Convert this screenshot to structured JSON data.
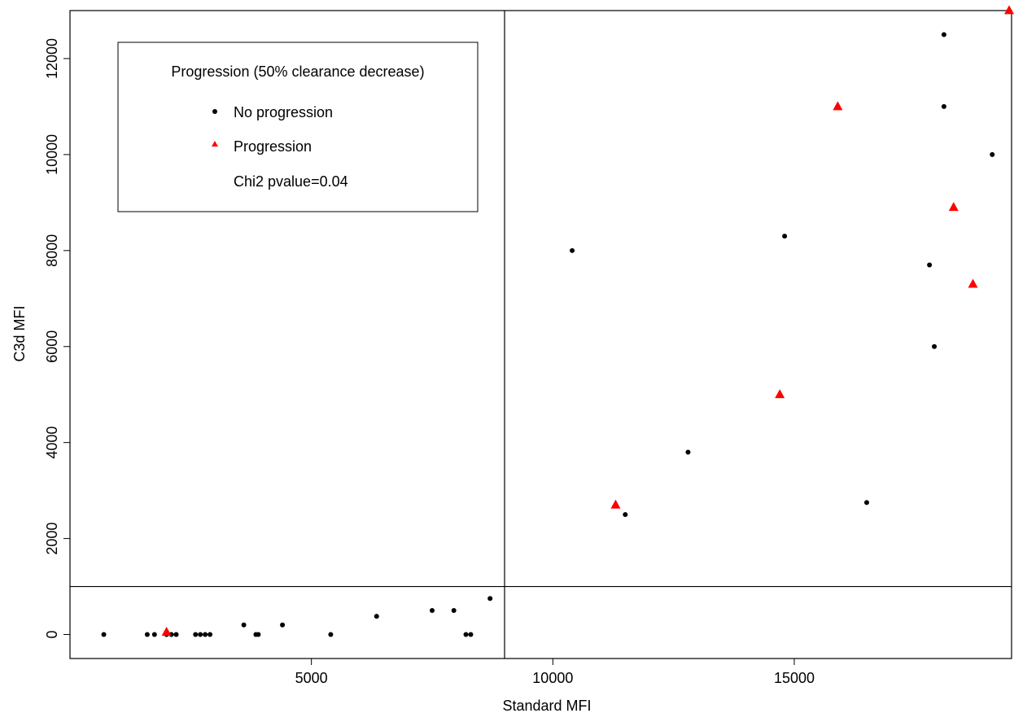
{
  "chart_data": {
    "type": "scatter",
    "title": "",
    "xlabel": "Standard MFI",
    "ylabel": "C3d MFI",
    "xlim": [
      0,
      19500
    ],
    "ylim": [
      -500,
      13000
    ],
    "x_ticks": [
      "5000",
      "10000",
      "15000"
    ],
    "x_tick_values": [
      5000,
      10000,
      15000
    ],
    "y_ticks": [
      "0",
      "2000",
      "4000",
      "6000",
      "8000",
      "10000",
      "12000"
    ],
    "y_tick_values": [
      0,
      2000,
      4000,
      6000,
      8000,
      10000,
      12000
    ],
    "reference_lines": {
      "vertical_x": 9000,
      "horizontal_y": 1000
    },
    "grid": false,
    "legend": {
      "placement": "top-left",
      "title": "Progression (50% clearance decrease)",
      "entries": [
        {
          "label": "No progression",
          "marker": "circle",
          "color": "#000000"
        },
        {
          "label": "Progression",
          "marker": "triangle",
          "color": "#ff0000"
        }
      ],
      "note": "Chi2 pvalue=0.04"
    },
    "series": [
      {
        "name": "No progression",
        "marker": "circle",
        "color": "#000000",
        "points": [
          [
            700,
            0
          ],
          [
            1600,
            0
          ],
          [
            1750,
            0
          ],
          [
            2000,
            0
          ],
          [
            2100,
            0
          ],
          [
            2200,
            0
          ],
          [
            2600,
            0
          ],
          [
            2700,
            0
          ],
          [
            2800,
            0
          ],
          [
            2900,
            0
          ],
          [
            3600,
            200
          ],
          [
            3850,
            0
          ],
          [
            3900,
            0
          ],
          [
            4400,
            200
          ],
          [
            5400,
            0
          ],
          [
            6350,
            380
          ],
          [
            7500,
            500
          ],
          [
            7950,
            500
          ],
          [
            8200,
            0
          ],
          [
            8300,
            0
          ],
          [
            8700,
            750
          ],
          [
            10400,
            8000
          ],
          [
            11500,
            2500
          ],
          [
            12800,
            3800
          ],
          [
            14800,
            8300
          ],
          [
            16500,
            2750
          ],
          [
            17800,
            7700
          ],
          [
            17900,
            6000
          ],
          [
            18100,
            11000
          ],
          [
            18100,
            12500
          ],
          [
            19100,
            10000
          ]
        ]
      },
      {
        "name": "Progression",
        "marker": "triangle",
        "color": "#ff0000",
        "points": [
          [
            2000,
            50
          ],
          [
            11300,
            2700
          ],
          [
            14700,
            5000
          ],
          [
            15900,
            11000
          ],
          [
            18300,
            8900
          ],
          [
            18700,
            7300
          ],
          [
            19450,
            13000
          ]
        ]
      }
    ]
  }
}
